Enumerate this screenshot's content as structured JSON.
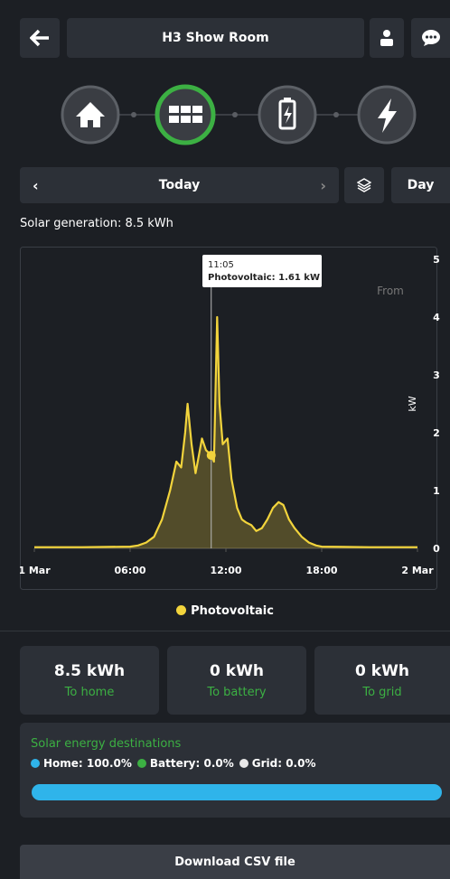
{
  "header": {
    "title": "H3 Show Room"
  },
  "date_nav": {
    "period": "Today",
    "mode": "Day"
  },
  "summary": "Solar generation: 8.5 kWh",
  "chart_data": {
    "type": "line",
    "xlim": [
      0,
      24
    ],
    "xticks": [
      {
        "value": 0,
        "label": "1 Mar"
      },
      {
        "value": 6,
        "label": "06:00"
      },
      {
        "value": 12,
        "label": "12:00"
      },
      {
        "value": 18,
        "label": "18:00"
      },
      {
        "value": 24,
        "label": "2 Mar"
      }
    ],
    "ylim": [
      0,
      5
    ],
    "yticks": [
      0,
      1,
      2,
      3,
      4,
      5
    ],
    "y_label": "kW",
    "grid": false,
    "annotation": "From",
    "tooltip": {
      "time": "11:05",
      "text": "Photovoltaic: 1.61 kW"
    },
    "x": [
      0,
      3,
      6,
      6.5,
      7,
      7.5,
      8,
      8.5,
      8.9,
      9.2,
      9.45,
      9.6,
      9.85,
      10.1,
      10.3,
      10.5,
      10.75,
      11.08,
      11.25,
      11.45,
      11.6,
      11.8,
      12.1,
      12.35,
      12.7,
      13,
      13.25,
      13.6,
      13.9,
      14.25,
      14.6,
      14.95,
      15.3,
      15.6,
      15.95,
      16.3,
      16.75,
      17.2,
      17.65,
      18,
      21,
      24
    ],
    "series": [
      {
        "name": "Photovoltaic",
        "color": "#f2d43c",
        "values": [
          0.02,
          0.02,
          0.03,
          0.05,
          0.1,
          0.2,
          0.5,
          1.0,
          1.5,
          1.4,
          2.0,
          2.5,
          1.8,
          1.3,
          1.6,
          1.9,
          1.7,
          1.61,
          1.5,
          4.0,
          2.5,
          1.8,
          1.9,
          1.2,
          0.7,
          0.5,
          0.45,
          0.4,
          0.3,
          0.35,
          0.5,
          0.7,
          0.8,
          0.75,
          0.5,
          0.35,
          0.2,
          0.1,
          0.05,
          0.03,
          0.02,
          0.02
        ]
      }
    ]
  },
  "cards": [
    {
      "value": "8.5 kWh",
      "label": "To home"
    },
    {
      "value": "0 kWh",
      "label": "To battery"
    },
    {
      "value": "0 kWh",
      "label": "To grid"
    }
  ],
  "destinations": {
    "title": "Solar energy destinations",
    "items": [
      {
        "label": "Home: 100.0%",
        "value": 100,
        "color": "#2fb4ea"
      },
      {
        "label": "Battery: 0.0%",
        "value": 0,
        "color": "#3cb043"
      },
      {
        "label": "Grid: 0.0%",
        "value": 0,
        "color": "#e8e8e8"
      }
    ]
  },
  "download": "Download CSV file"
}
